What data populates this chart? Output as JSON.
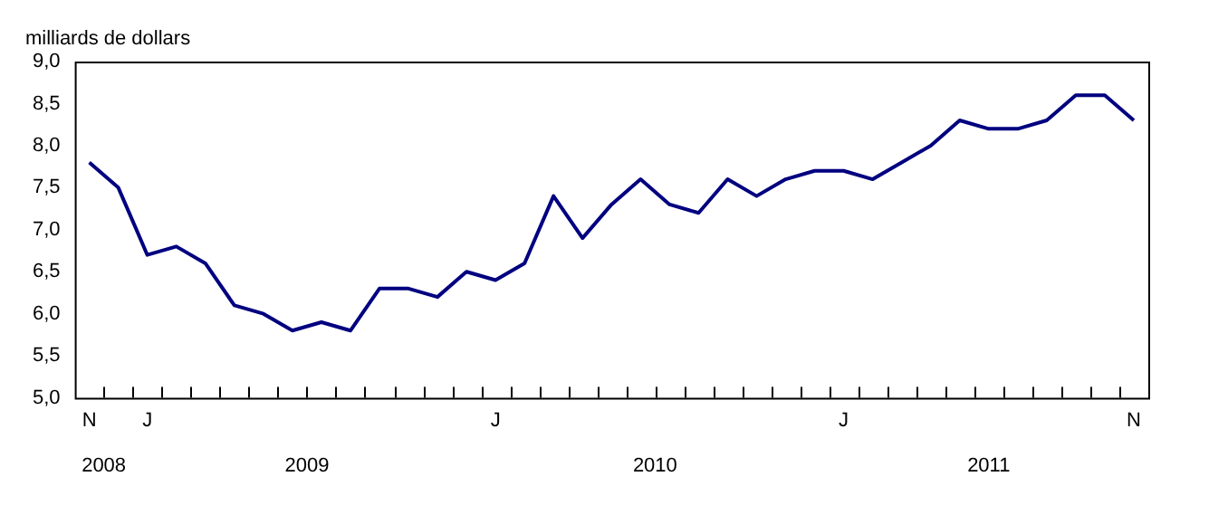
{
  "chart_data": {
    "type": "line",
    "ylabel": "milliards de dollars",
    "categories": [
      "N",
      null,
      "J",
      null,
      null,
      null,
      null,
      null,
      null,
      null,
      null,
      null,
      null,
      null,
      "J",
      null,
      null,
      null,
      null,
      null,
      null,
      null,
      null,
      null,
      null,
      null,
      "J",
      null,
      null,
      null,
      null,
      null,
      null,
      null,
      null,
      null,
      "N"
    ],
    "series": [
      {
        "color": "#000080",
        "values": [
          7.8,
          7.5,
          6.7,
          6.8,
          6.6,
          6.1,
          6.0,
          5.8,
          5.9,
          5.8,
          6.3,
          6.3,
          6.2,
          6.5,
          6.4,
          6.6,
          7.4,
          6.9,
          7.3,
          7.6,
          7.3,
          7.2,
          7.6,
          7.4,
          7.6,
          7.7,
          7.7,
          7.6,
          7.8,
          8.0,
          8.3,
          8.2,
          8.2,
          8.3,
          8.6,
          8.6,
          8.3
        ]
      }
    ],
    "ylim": [
      5,
      9
    ],
    "yticks": [
      {
        "value": 5,
        "label": "5,0"
      },
      {
        "value": 5.5,
        "label": "5,5"
      },
      {
        "value": 6,
        "label": "6,0"
      },
      {
        "value": 6.5,
        "label": "6,5"
      },
      {
        "value": 7,
        "label": "7,0"
      },
      {
        "value": 7.5,
        "label": "7,5"
      },
      {
        "value": 8,
        "label": "8,0"
      },
      {
        "value": 8.5,
        "label": "8,5"
      },
      {
        "value": 9,
        "label": "9,0"
      }
    ],
    "annotations": [
      "2008",
      "2009",
      "2010",
      "2011"
    ],
    "grid": false,
    "legend": false,
    "marker": "none",
    "line_style": "solid"
  }
}
